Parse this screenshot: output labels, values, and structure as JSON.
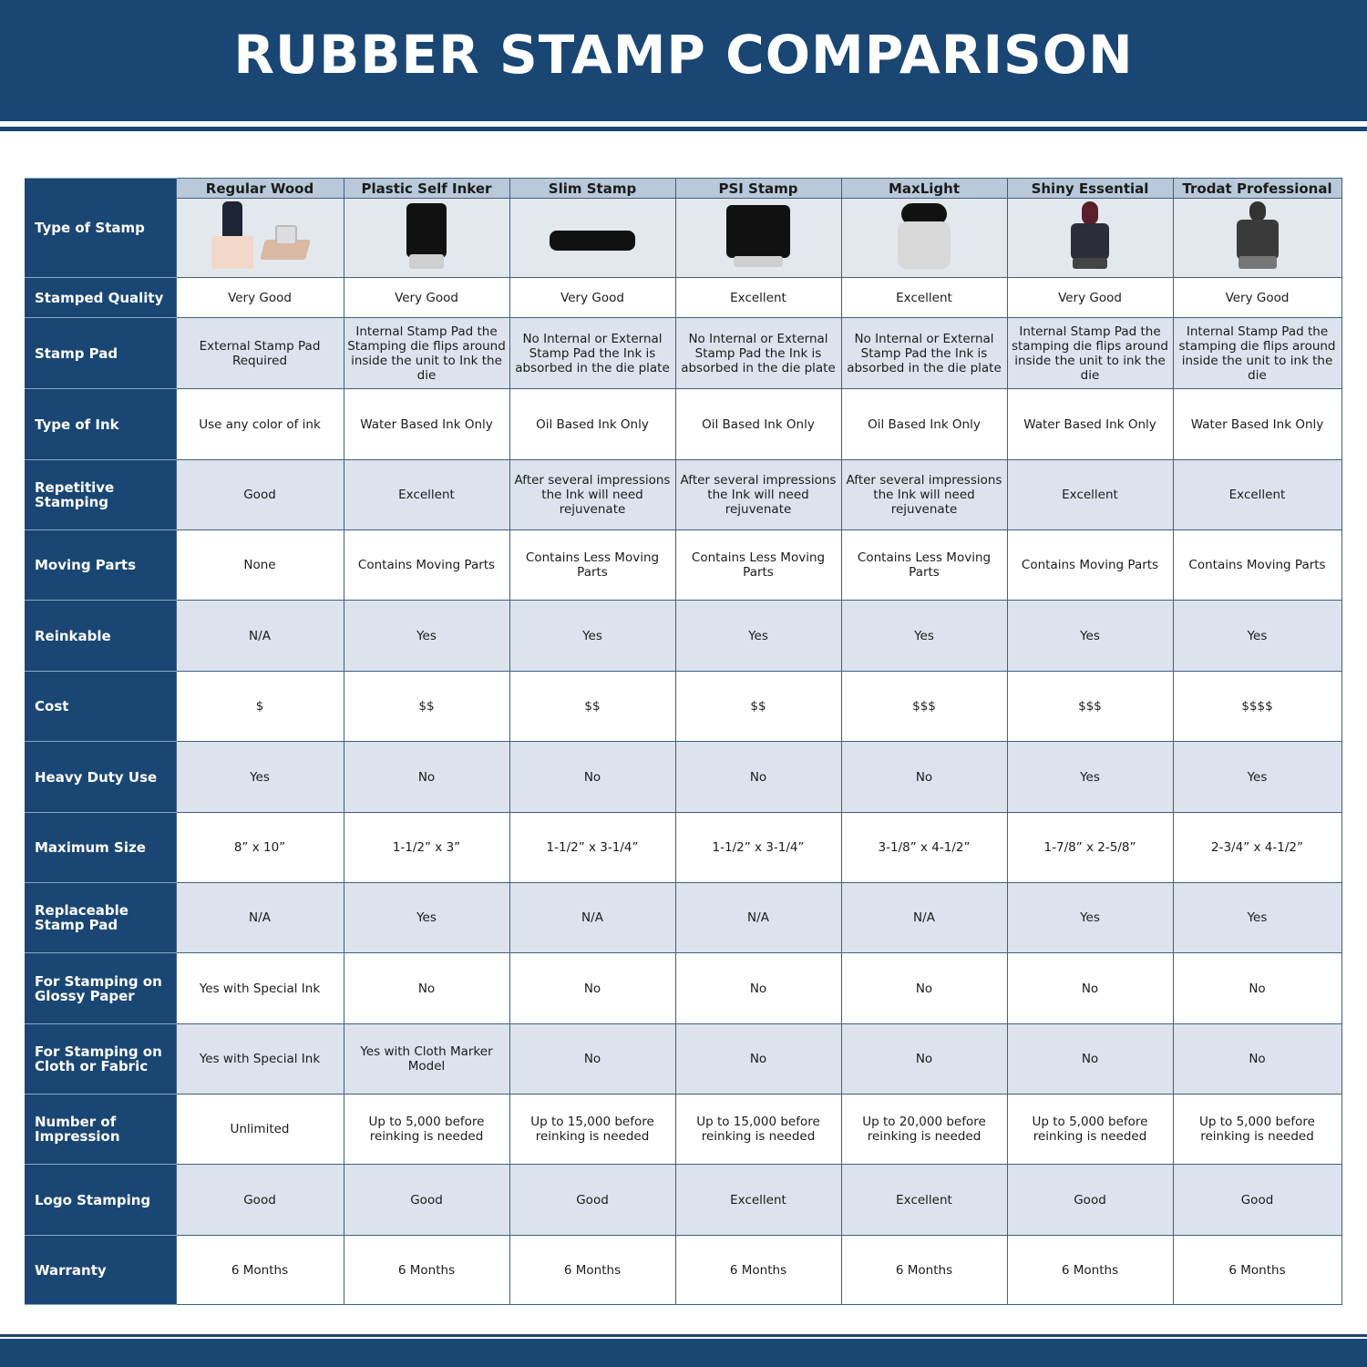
{
  "title": "RUBBER STAMP COMPARISON",
  "colors": {
    "brand": "#1a4673",
    "column_header": "#b9c9da",
    "alt_row": "#dce3ec"
  },
  "columns": [
    "Regular Wood",
    "Plastic Self Inker",
    "Slim Stamp",
    "PSI Stamp",
    "MaxLight",
    "Shiny Essential",
    "Trodat Professional"
  ],
  "image_row_label": "Type of Stamp",
  "images": [
    "wood-stamp-image",
    "self-inker-stamp-image",
    "slim-stamp-image",
    "psi-stamp-image",
    "maxlight-stamp-image",
    "shiny-essential-stamp-image",
    "trodat-professional-stamp-image"
  ],
  "rows": [
    {
      "label": "Stamped Quality",
      "values": [
        "Very Good",
        "Very Good",
        "Very Good",
        "Excellent",
        "Excellent",
        "Very Good",
        "Very Good"
      ]
    },
    {
      "label": "Stamp Pad",
      "values": [
        "External Stamp Pad Required",
        "Internal Stamp Pad the Stamping die flips around inside the unit to Ink the die",
        "No Internal or External Stamp Pad the Ink is absorbed in the die plate",
        "No Internal or External Stamp Pad the Ink is absorbed in the die plate",
        "No Internal or External Stamp Pad the Ink is absorbed in the die plate",
        "Internal Stamp Pad the stamping die flips around inside the unit to ink the die",
        "Internal Stamp Pad the stamping die flips around inside the unit to ink the die"
      ]
    },
    {
      "label": "Type of Ink",
      "values": [
        "Use any color of ink",
        "Water Based Ink Only",
        "Oil Based Ink Only",
        "Oil Based Ink Only",
        "Oil Based Ink Only",
        "Water Based Ink Only",
        "Water Based Ink Only"
      ]
    },
    {
      "label": "Repetitive Stamping",
      "values": [
        "Good",
        "Excellent",
        "After several impressions the Ink will need rejuvenate",
        "After several impressions the Ink will need rejuvenate",
        "After several impressions the Ink will need rejuvenate",
        "Excellent",
        "Excellent"
      ]
    },
    {
      "label": "Moving Parts",
      "values": [
        "None",
        "Contains Moving Parts",
        "Contains Less Moving Parts",
        "Contains Less Moving Parts",
        "Contains Less Moving Parts",
        "Contains Moving Parts",
        "Contains Moving Parts"
      ]
    },
    {
      "label": "Reinkable",
      "values": [
        "N/A",
        "Yes",
        "Yes",
        "Yes",
        "Yes",
        "Yes",
        "Yes"
      ]
    },
    {
      "label": "Cost",
      "values": [
        "$",
        "$$",
        "$$",
        "$$",
        "$$$",
        "$$$",
        "$$$$"
      ]
    },
    {
      "label": "Heavy Duty Use",
      "values": [
        "Yes",
        "No",
        "No",
        "No",
        "No",
        "Yes",
        "Yes"
      ]
    },
    {
      "label": "Maximum Size",
      "values": [
        "8” x 10”",
        "1-1/2” x 3”",
        "1-1/2” x 3-1/4”",
        "1-1/2” x 3-1/4”",
        "3-1/8” x 4-1/2”",
        "1-7/8” x 2-5/8”",
        "2-3/4” x 4-1/2”"
      ]
    },
    {
      "label": "Replaceable Stamp Pad",
      "values": [
        "N/A",
        "Yes",
        "N/A",
        "N/A",
        "N/A",
        "Yes",
        "Yes"
      ]
    },
    {
      "label": "For Stamping on Glossy Paper",
      "values": [
        "Yes with Special Ink",
        "No",
        "No",
        "No",
        "No",
        "No",
        "No"
      ]
    },
    {
      "label": "For Stamping on Cloth or Fabric",
      "values": [
        "Yes with Special Ink",
        "Yes with Cloth Marker Model",
        "No",
        "No",
        "No",
        "No",
        "No"
      ]
    },
    {
      "label": "Number of Impression",
      "values": [
        "Unlimited",
        "Up to 5,000 before reinking is needed",
        "Up to 15,000 before reinking is needed",
        "Up to 15,000 before reinking is needed",
        "Up to 20,000 before reinking is needed",
        "Up to 5,000 before reinking is needed",
        "Up to 5,000 before reinking is needed"
      ]
    },
    {
      "label": "Logo Stamping",
      "values": [
        "Good",
        "Good",
        "Good",
        "Excellent",
        "Excellent",
        "Good",
        "Good"
      ]
    },
    {
      "label": "Warranty",
      "values": [
        "6 Months",
        "6 Months",
        "6 Months",
        "6 Months",
        "6 Months",
        "6 Months",
        "6 Months"
      ]
    }
  ]
}
